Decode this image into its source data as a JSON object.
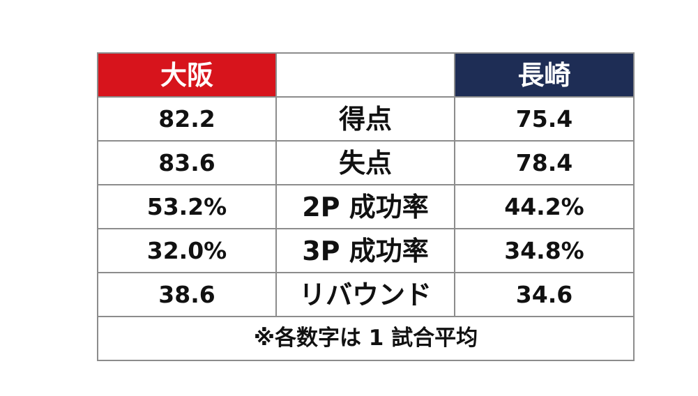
{
  "header": {
    "left_team": "大阪",
    "middle": "",
    "right_team": "長崎"
  },
  "colors": {
    "left_team_bg": "#d7141c",
    "right_team_bg": "#1e2d55",
    "border": "#8c8c8c"
  },
  "rows": [
    {
      "left": "82.2",
      "label": "得点",
      "right": "75.4"
    },
    {
      "left": "83.6",
      "label": "失点",
      "right": "78.4"
    },
    {
      "left": "53.2%",
      "label": "2P 成功率",
      "right": "44.2%"
    },
    {
      "left": "32.0%",
      "label": "3P 成功率",
      "right": "34.8%"
    },
    {
      "left": "38.6",
      "label": "リバウンド",
      "right": "34.6"
    }
  ],
  "footnote": "※各数字は 1 試合平均"
}
